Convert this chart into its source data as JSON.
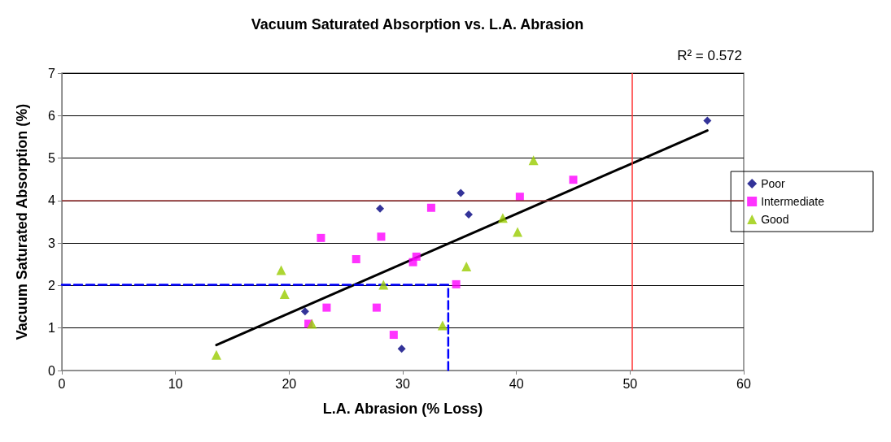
{
  "chart_data": {
    "type": "scatter",
    "title": "Vacuum Saturated Absorption vs. L.A. Abrasion",
    "xlabel": "L.A. Abrasion (% Loss)",
    "ylabel": "Vacuum Saturated Absorption (%)",
    "annotations": [
      "R² = 0.572"
    ],
    "xlim": [
      0,
      60
    ],
    "xticks": [
      0,
      10,
      20,
      30,
      40,
      50,
      60
    ],
    "ylim": [
      0,
      7
    ],
    "yticks": [
      0,
      1,
      2,
      3,
      4,
      5,
      6,
      7
    ],
    "grid": "y",
    "legend": "right",
    "series": [
      {
        "name": "Poor",
        "color": "#000080",
        "marker": "diamond",
        "x": [
          21.4,
          28.0,
          29.9,
          35.1,
          35.8,
          56.8
        ],
        "values": [
          1.39,
          3.81,
          0.51,
          4.18,
          3.67,
          5.88
        ]
      },
      {
        "name": "Intermediate",
        "color": "#ff00ff",
        "marker": "square",
        "x": [
          21.7,
          22.8,
          23.3,
          25.9,
          27.7,
          28.1,
          29.2,
          30.9,
          31.2,
          32.5,
          34.7,
          40.3,
          45.0
        ],
        "values": [
          1.1,
          3.12,
          1.48,
          2.62,
          1.48,
          3.15,
          0.84,
          2.55,
          2.68,
          3.83,
          2.03,
          4.09,
          4.49
        ]
      },
      {
        "name": "Good",
        "color": "#99cc00",
        "marker": "triangle",
        "x": [
          13.6,
          19.3,
          19.6,
          22.0,
          28.3,
          33.5,
          35.6,
          38.8,
          40.1,
          41.5
        ],
        "values": [
          0.37,
          2.36,
          1.8,
          1.1,
          2.02,
          1.06,
          2.45,
          3.59,
          3.26,
          4.95
        ]
      },
      {
        "type": "line",
        "color": "#000000",
        "marker": "none",
        "line_style": "solid",
        "x": [
          13.6,
          56.8
        ],
        "values": [
          0.6,
          5.65
        ]
      },
      {
        "type": "line",
        "color": "#0000ff",
        "marker": "none",
        "line_style": "dashed",
        "x": [
          0,
          34,
          34
        ],
        "values": [
          2.02,
          2.02,
          0
        ]
      }
    ],
    "ref_lines": [
      {
        "axis": "y",
        "value": 4,
        "color": "#993333"
      },
      {
        "axis": "x",
        "value": 50.2,
        "color": "#ff3333"
      }
    ]
  }
}
